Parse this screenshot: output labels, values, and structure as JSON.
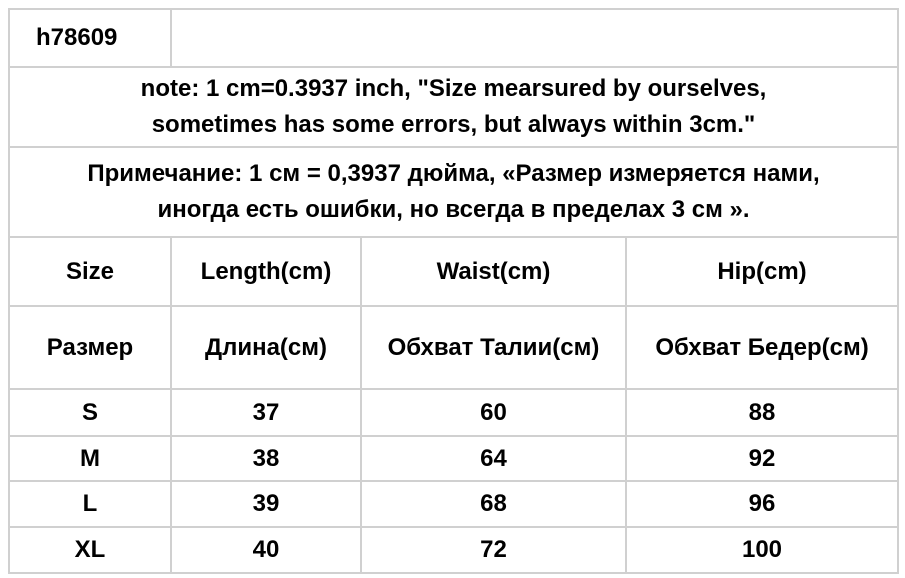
{
  "header": {
    "code": "h78609"
  },
  "note_en": {
    "lines": [
      "note: 1 cm=0.3937 inch, \"Size mearsured by ourselves,",
      "sometimes has some errors, but always within 3cm.\""
    ]
  },
  "note_ru": {
    "lines": [
      "Примечание: 1 см = 0,3937 дюйма, «Размер измеряется нами,",
      "иногда есть ошибки, но всегда в пределах 3 см »."
    ]
  },
  "table": {
    "columns": [
      {
        "en": "Size",
        "ru": "Размер"
      },
      {
        "en": "Length(cm)",
        "ru": "Длина(см)"
      },
      {
        "en": "Waist(cm)",
        "ru": "Обхват Талии(см)"
      },
      {
        "en": "Hip(cm)",
        "ru": "Обхват Бедер(см)"
      }
    ],
    "rows": [
      [
        "S",
        37,
        60,
        88
      ],
      [
        "M",
        38,
        64,
        92
      ],
      [
        "L",
        39,
        68,
        96
      ],
      [
        "XL",
        40,
        72,
        100
      ]
    ]
  }
}
